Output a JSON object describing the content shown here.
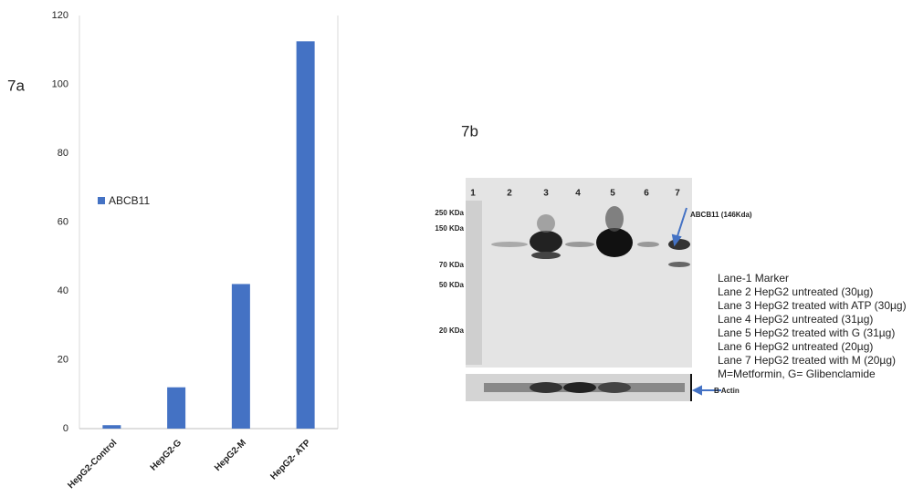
{
  "panel_labels": [
    "7a",
    "7b"
  ],
  "chart_data": {
    "type": "bar",
    "categories": [
      "HepG2-Control",
      "HepG2-G",
      "HepG2-M",
      "HepG2- ATP"
    ],
    "series": [
      {
        "name": "ABCB11",
        "color": "#4472c4",
        "values": [
          1,
          12,
          42,
          112.5
        ]
      }
    ],
    "ylim": [
      0,
      120
    ],
    "yticks": [
      0,
      20,
      40,
      60,
      80,
      100,
      120
    ],
    "grid": false
  },
  "blot": {
    "lanes": [
      "1",
      "2",
      "3",
      "4",
      "5",
      "6",
      "7"
    ],
    "markers": [
      "250 KDa",
      "150 KDa",
      "70 KDa",
      "50 KDa",
      "20 KDa"
    ],
    "target_label": "ABCB11 (146Kda)",
    "control_label": "B Actin",
    "legend": [
      "Lane-1 Marker",
      "Lane 2  HepG2 untreated  (30µg)",
      "Lane 3  HepG2 treated with ATP (30µg)",
      "Lane 4   HepG2 untreated (31µg)",
      "Lane 5 HepG2 treated with G (31µg)",
      "Lane 6  HepG2 untreated (20µg)",
      "Lane 7 HepG2 treated with M (20µg)",
      "M=Metformin, G= Glibenclamide"
    ]
  }
}
